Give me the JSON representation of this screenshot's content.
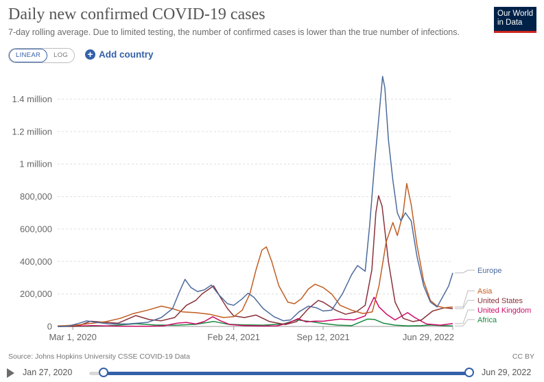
{
  "header": {
    "title": "Daily new confirmed COVID-19 cases",
    "subtitle": "7-day rolling average. Due to limited testing, the number of confirmed cases is lower than the true number of infections.",
    "logo_line1": "Our World",
    "logo_line2": "in Data"
  },
  "controls": {
    "linear_label": "LINEAR",
    "log_label": "LOG",
    "add_country_label": "Add country",
    "selected_scale": "linear"
  },
  "footer": {
    "source": "Source: Johns Hopkins University CSSE COVID-19 Data",
    "license": "CC BY"
  },
  "timeline": {
    "start_label": "Jan 27, 2020",
    "end_label": "Jun 29, 2022"
  },
  "colors": {
    "europe": "#4c6a9c",
    "asia": "#c15c20",
    "united_states": "#883039",
    "united_kingdom": "#cd0a67",
    "africa": "#158a3d",
    "accent": "#3360a9"
  },
  "chart_data": {
    "type": "line",
    "title": "Daily new confirmed COVID-19 cases",
    "xlabel": "",
    "ylabel": "",
    "x_ticks": [
      {
        "date": "2020-03-01",
        "label": "Mar 1, 2020"
      },
      {
        "date": "2021-02-24",
        "label": "Feb 24, 2021"
      },
      {
        "date": "2021-09-12",
        "label": "Sep 12, 2021"
      },
      {
        "date": "2022-06-29",
        "label": "Jun 29, 2022"
      }
    ],
    "y_ticks": [
      {
        "value": 0,
        "label": "0"
      },
      {
        "value": 200000,
        "label": "200,000"
      },
      {
        "value": 400000,
        "label": "400,000"
      },
      {
        "value": 600000,
        "label": "600,000"
      },
      {
        "value": 800000,
        "label": "800,000"
      },
      {
        "value": 1000000,
        "label": "1 million"
      },
      {
        "value": 1200000,
        "label": "1.2 million"
      },
      {
        "value": 1400000,
        "label": "1.4 million"
      }
    ],
    "xlim": [
      "2020-01-27",
      "2022-06-29"
    ],
    "ylim": [
      0,
      1550000
    ],
    "grid": "horizontal dashed",
    "legend": "right, labels at line ends",
    "series": [
      {
        "name": "Europe",
        "color": "#4c6a9c",
        "points": [
          [
            "2020-01-27",
            0
          ],
          [
            "2020-02-20",
            2000
          ],
          [
            "2020-03-15",
            20000
          ],
          [
            "2020-04-01",
            34000
          ],
          [
            "2020-04-20",
            26000
          ],
          [
            "2020-05-20",
            16000
          ],
          [
            "2020-07-01",
            15000
          ],
          [
            "2020-08-15",
            25000
          ],
          [
            "2020-09-15",
            55000
          ],
          [
            "2020-10-10",
            110000
          ],
          [
            "2020-10-25",
            210000
          ],
          [
            "2020-11-07",
            290000
          ],
          [
            "2020-11-20",
            240000
          ],
          [
            "2020-12-05",
            215000
          ],
          [
            "2020-12-20",
            225000
          ],
          [
            "2021-01-05",
            255000
          ],
          [
            "2021-01-20",
            200000
          ],
          [
            "2021-02-10",
            140000
          ],
          [
            "2021-02-24",
            130000
          ],
          [
            "2021-03-15",
            170000
          ],
          [
            "2021-03-28",
            205000
          ],
          [
            "2021-04-10",
            180000
          ],
          [
            "2021-05-01",
            110000
          ],
          [
            "2021-05-25",
            60000
          ],
          [
            "2021-06-15",
            35000
          ],
          [
            "2021-07-01",
            40000
          ],
          [
            "2021-07-20",
            90000
          ],
          [
            "2021-08-10",
            125000
          ],
          [
            "2021-08-28",
            115000
          ],
          [
            "2021-09-12",
            95000
          ],
          [
            "2021-10-01",
            100000
          ],
          [
            "2021-10-25",
            200000
          ],
          [
            "2021-11-15",
            320000
          ],
          [
            "2021-11-28",
            375000
          ],
          [
            "2021-12-15",
            340000
          ],
          [
            "2021-12-25",
            620000
          ],
          [
            "2022-01-05",
            1000000
          ],
          [
            "2022-01-15",
            1300000
          ],
          [
            "2022-01-23",
            1540000
          ],
          [
            "2022-01-28",
            1470000
          ],
          [
            "2022-02-05",
            1150000
          ],
          [
            "2022-02-15",
            900000
          ],
          [
            "2022-02-25",
            700000
          ],
          [
            "2022-03-05",
            650000
          ],
          [
            "2022-03-15",
            700000
          ],
          [
            "2022-03-28",
            650000
          ],
          [
            "2022-04-10",
            430000
          ],
          [
            "2022-04-25",
            250000
          ],
          [
            "2022-05-10",
            150000
          ],
          [
            "2022-05-25",
            120000
          ],
          [
            "2022-06-10",
            200000
          ],
          [
            "2022-06-20",
            250000
          ],
          [
            "2022-06-29",
            330000
          ]
        ]
      },
      {
        "name": "Asia",
        "color": "#c15c20",
        "points": [
          [
            "2020-01-27",
            3000
          ],
          [
            "2020-02-15",
            5000
          ],
          [
            "2020-03-15",
            10000
          ],
          [
            "2020-04-15",
            20000
          ],
          [
            "2020-05-15",
            30000
          ],
          [
            "2020-06-15",
            50000
          ],
          [
            "2020-07-15",
            80000
          ],
          [
            "2020-08-15",
            100000
          ],
          [
            "2020-09-15",
            125000
          ],
          [
            "2020-10-10",
            110000
          ],
          [
            "2020-11-01",
            90000
          ],
          [
            "2020-12-01",
            85000
          ],
          [
            "2021-01-01",
            75000
          ],
          [
            "2021-02-01",
            55000
          ],
          [
            "2021-02-24",
            60000
          ],
          [
            "2021-03-15",
            100000
          ],
          [
            "2021-04-01",
            200000
          ],
          [
            "2021-04-15",
            350000
          ],
          [
            "2021-04-28",
            470000
          ],
          [
            "2021-05-08",
            490000
          ],
          [
            "2021-05-20",
            400000
          ],
          [
            "2021-06-05",
            250000
          ],
          [
            "2021-06-25",
            150000
          ],
          [
            "2021-07-10",
            140000
          ],
          [
            "2021-07-25",
            170000
          ],
          [
            "2021-08-10",
            230000
          ],
          [
            "2021-08-25",
            260000
          ],
          [
            "2021-09-12",
            240000
          ],
          [
            "2021-10-01",
            200000
          ],
          [
            "2021-10-20",
            130000
          ],
          [
            "2021-11-15",
            100000
          ],
          [
            "2021-12-10",
            80000
          ],
          [
            "2021-12-31",
            90000
          ],
          [
            "2022-01-15",
            250000
          ],
          [
            "2022-01-31",
            520000
          ],
          [
            "2022-02-15",
            640000
          ],
          [
            "2022-02-25",
            560000
          ],
          [
            "2022-03-10",
            700000
          ],
          [
            "2022-03-18",
            880000
          ],
          [
            "2022-03-28",
            750000
          ],
          [
            "2022-04-10",
            500000
          ],
          [
            "2022-04-25",
            280000
          ],
          [
            "2022-05-10",
            160000
          ],
          [
            "2022-05-25",
            125000
          ],
          [
            "2022-06-10",
            115000
          ],
          [
            "2022-06-29",
            120000
          ]
        ]
      },
      {
        "name": "United States",
        "color": "#883039",
        "points": [
          [
            "2020-01-27",
            0
          ],
          [
            "2020-03-10",
            1000
          ],
          [
            "2020-04-10",
            32000
          ],
          [
            "2020-05-15",
            25000
          ],
          [
            "2020-06-10",
            20000
          ],
          [
            "2020-07-20",
            67000
          ],
          [
            "2020-08-20",
            42000
          ],
          [
            "2020-09-15",
            35000
          ],
          [
            "2020-10-15",
            55000
          ],
          [
            "2020-11-10",
            130000
          ],
          [
            "2020-12-01",
            160000
          ],
          [
            "2020-12-15",
            200000
          ],
          [
            "2021-01-10",
            250000
          ],
          [
            "2021-01-25",
            180000
          ],
          [
            "2021-02-10",
            110000
          ],
          [
            "2021-02-24",
            65000
          ],
          [
            "2021-03-20",
            55000
          ],
          [
            "2021-04-15",
            70000
          ],
          [
            "2021-05-15",
            30000
          ],
          [
            "2021-06-20",
            12000
          ],
          [
            "2021-07-15",
            30000
          ],
          [
            "2021-08-10",
            110000
          ],
          [
            "2021-09-01",
            160000
          ],
          [
            "2021-09-12",
            150000
          ],
          [
            "2021-10-10",
            100000
          ],
          [
            "2021-11-01",
            75000
          ],
          [
            "2021-11-25",
            90000
          ],
          [
            "2021-12-15",
            130000
          ],
          [
            "2021-12-30",
            350000
          ],
          [
            "2022-01-08",
            700000
          ],
          [
            "2022-01-14",
            805000
          ],
          [
            "2022-01-22",
            740000
          ],
          [
            "2022-02-05",
            400000
          ],
          [
            "2022-02-20",
            150000
          ],
          [
            "2022-03-10",
            50000
          ],
          [
            "2022-04-01",
            30000
          ],
          [
            "2022-04-20",
            40000
          ],
          [
            "2022-05-15",
            95000
          ],
          [
            "2022-06-10",
            115000
          ],
          [
            "2022-06-29",
            110000
          ]
        ]
      },
      {
        "name": "United Kingdom",
        "color": "#cd0a67",
        "points": [
          [
            "2020-01-27",
            0
          ],
          [
            "2020-03-20",
            3000
          ],
          [
            "2020-04-15",
            5000
          ],
          [
            "2020-06-15",
            1500
          ],
          [
            "2020-08-15",
            1000
          ],
          [
            "2020-09-20",
            4000
          ],
          [
            "2020-10-20",
            20000
          ],
          [
            "2020-11-10",
            25000
          ],
          [
            "2020-12-01",
            15000
          ],
          [
            "2020-12-20",
            30000
          ],
          [
            "2021-01-08",
            60000
          ],
          [
            "2021-01-25",
            35000
          ],
          [
            "2021-02-15",
            12000
          ],
          [
            "2021-03-15",
            6000
          ],
          [
            "2021-05-01",
            2500
          ],
          [
            "2021-06-01",
            4000
          ],
          [
            "2021-06-25",
            20000
          ],
          [
            "2021-07-18",
            48000
          ],
          [
            "2021-08-05",
            28000
          ],
          [
            "2021-08-25",
            33000
          ],
          [
            "2021-09-12",
            32000
          ],
          [
            "2021-10-20",
            45000
          ],
          [
            "2021-11-20",
            40000
          ],
          [
            "2021-12-15",
            65000
          ],
          [
            "2022-01-04",
            180000
          ],
          [
            "2022-01-15",
            120000
          ],
          [
            "2022-02-01",
            75000
          ],
          [
            "2022-02-20",
            40000
          ],
          [
            "2022-03-20",
            85000
          ],
          [
            "2022-04-05",
            55000
          ],
          [
            "2022-05-01",
            15000
          ],
          [
            "2022-06-01",
            8000
          ],
          [
            "2022-06-29",
            18000
          ]
        ]
      },
      {
        "name": "Africa",
        "color": "#158a3d",
        "points": [
          [
            "2020-01-27",
            0
          ],
          [
            "2020-04-01",
            1000
          ],
          [
            "2020-05-15",
            3000
          ],
          [
            "2020-06-15",
            9000
          ],
          [
            "2020-07-20",
            17000
          ],
          [
            "2020-09-01",
            9000
          ],
          [
            "2020-10-15",
            7000
          ],
          [
            "2020-12-01",
            13000
          ],
          [
            "2021-01-10",
            31000
          ],
          [
            "2021-02-10",
            14000
          ],
          [
            "2021-03-15",
            10000
          ],
          [
            "2021-05-01",
            8000
          ],
          [
            "2021-06-15",
            15000
          ],
          [
            "2021-07-15",
            40000
          ],
          [
            "2021-08-15",
            30000
          ],
          [
            "2021-09-12",
            18000
          ],
          [
            "2021-10-15",
            8000
          ],
          [
            "2021-11-15",
            5000
          ],
          [
            "2021-12-20",
            45000
          ],
          [
            "2022-01-05",
            43000
          ],
          [
            "2022-01-25",
            20000
          ],
          [
            "2022-02-20",
            8000
          ],
          [
            "2022-03-20",
            4000
          ],
          [
            "2022-04-20",
            5000
          ],
          [
            "2022-05-10",
            9000
          ],
          [
            "2022-06-01",
            6000
          ],
          [
            "2022-06-29",
            3000
          ]
        ]
      }
    ]
  }
}
